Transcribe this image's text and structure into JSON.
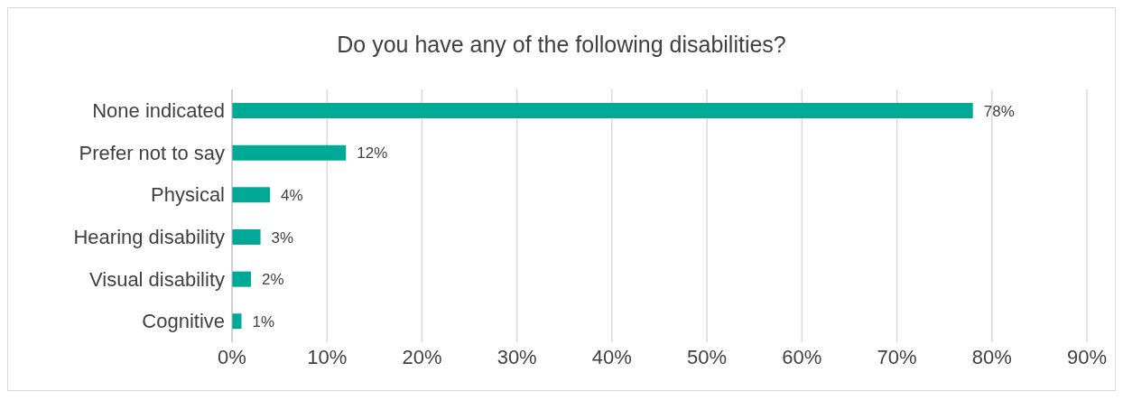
{
  "chart_data": {
    "type": "bar",
    "orientation": "horizontal",
    "title": "Do you have any of the following disabilities?",
    "categories": [
      "None indicated",
      "Prefer not to say",
      "Physical",
      "Hearing disability",
      "Visual disability",
      "Cognitive"
    ],
    "values": [
      78,
      12,
      4,
      3,
      2,
      1
    ],
    "value_labels": [
      "78%",
      "12%",
      "4%",
      "3%",
      "2%",
      "1%"
    ],
    "color": "#00a896",
    "xlim": [
      0,
      90
    ],
    "xticks": [
      {
        "value": 0,
        "label": "0%"
      },
      {
        "value": 10,
        "label": "10%"
      },
      {
        "value": 20,
        "label": "20%"
      },
      {
        "value": 30,
        "label": "30%"
      },
      {
        "value": 40,
        "label": "40%"
      },
      {
        "value": 50,
        "label": "50%"
      },
      {
        "value": 60,
        "label": "60%"
      },
      {
        "value": 70,
        "label": "70%"
      },
      {
        "value": 80,
        "label": "80%"
      },
      {
        "value": 90,
        "label": "90%"
      }
    ],
    "grid": "x"
  }
}
